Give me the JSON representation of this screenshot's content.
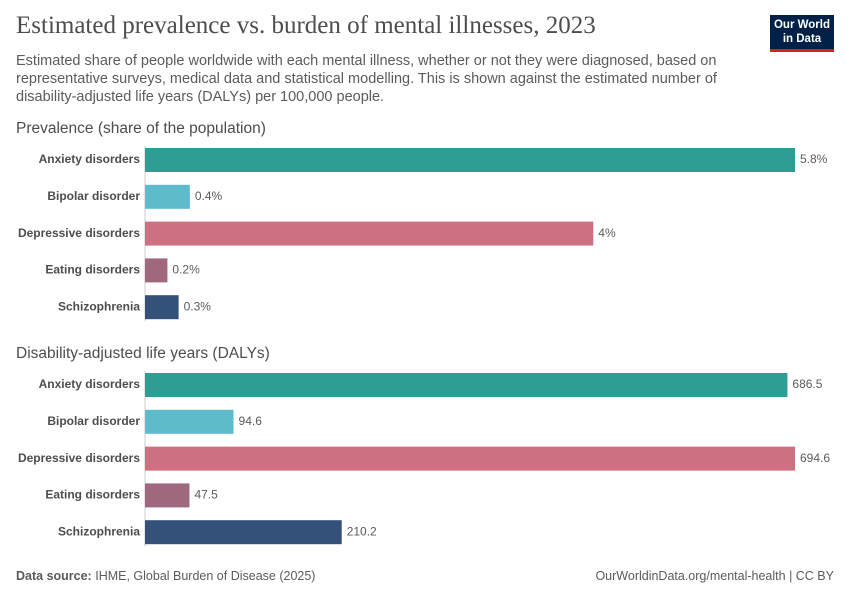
{
  "header": {
    "title": "Estimated prevalence vs. burden of mental illnesses, 2023",
    "subtitle": "Estimated share of people worldwide with each mental illness, whether or not they were diagnosed, based on representative surveys, medical data and statistical modelling. This is shown against the estimated number of disability-adjusted life years (DALYs) per 100,000 people.",
    "logo": [
      "Our World",
      "in Data"
    ]
  },
  "chart_data": [
    {
      "type": "bar",
      "orientation": "horizontal",
      "title": "Prevalence (share of the population)",
      "categories": [
        "Anxiety disorders",
        "Bipolar disorder",
        "Depressive disorders",
        "Eating disorders",
        "Schizophrenia"
      ],
      "values": [
        5.8,
        0.4,
        4,
        0.2,
        0.3
      ],
      "value_labels": [
        "5.8%",
        "0.4%",
        "4%",
        "0.2%",
        "0.3%"
      ],
      "colors": [
        "#2e9e94",
        "#5dbbcb",
        "#cf7082",
        "#a0687f",
        "#34517a"
      ]
    },
    {
      "type": "bar",
      "orientation": "horizontal",
      "title": "Disability-adjusted life years (DALYs)",
      "categories": [
        "Anxiety disorders",
        "Bipolar disorder",
        "Depressive disorders",
        "Eating disorders",
        "Schizophrenia"
      ],
      "values": [
        686.5,
        94.6,
        694.6,
        47.5,
        210.2
      ],
      "colors": [
        "#2e9e94",
        "#5dbbcb",
        "#cf7082",
        "#a0687f",
        "#34517a"
      ]
    }
  ],
  "footer": {
    "source_label": "Data source:",
    "source": "IHME, Global Burden of Disease (2025)",
    "url": "OurWorldinData.org/mental-health | CC BY"
  }
}
